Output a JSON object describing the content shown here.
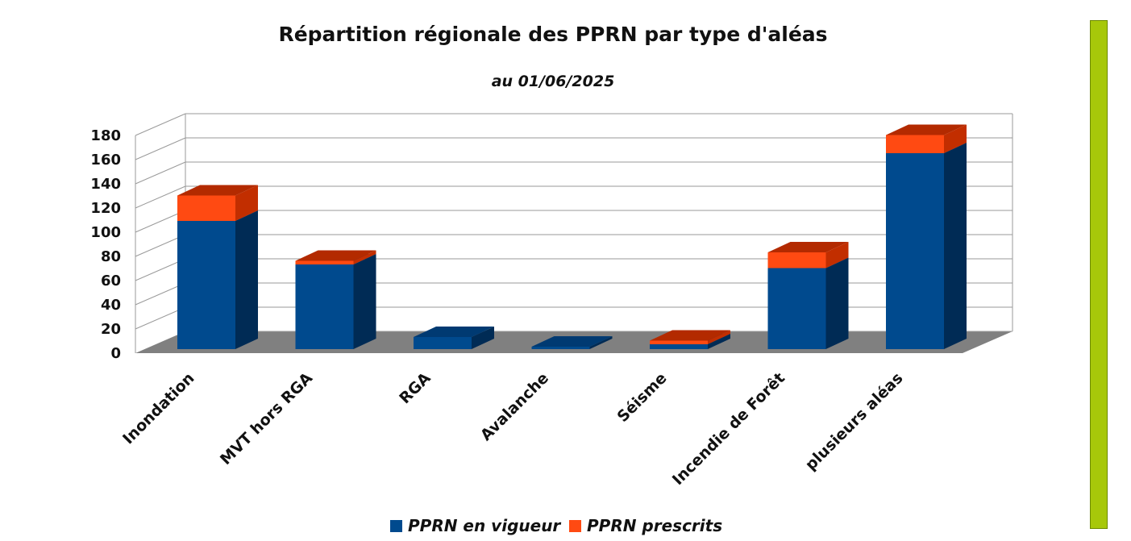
{
  "colors": {
    "vigueur_front": "#004a8e",
    "vigueur_side": "#002b55",
    "vigueur_top": "#003a72",
    "prescrits_front": "#ff4a12",
    "prescrits_side": "#c22e00",
    "prescrits_top": "#b32a00",
    "floor": "#808080",
    "side_bar": "#a7c80a"
  },
  "chart_data": {
    "type": "bar",
    "stacked": true,
    "three_d": true,
    "title": "Répartition régionale des PPRN par type d'aléas",
    "subtitle": "au 01/06/2025",
    "categories": [
      "Inondation",
      "MVT hors RGA",
      "RGA",
      "Avalanche",
      "Séisme",
      "Incendie de Forêt",
      "plusieurs aléas"
    ],
    "series": [
      {
        "name": "PPRN en vigueur",
        "values": [
          106,
          70,
          10,
          2,
          4,
          67,
          162
        ]
      },
      {
        "name": "PPRN prescrits",
        "values": [
          21,
          3,
          0,
          0,
          3,
          13,
          15
        ]
      }
    ],
    "ylim": [
      0,
      180
    ],
    "yticks": [
      "0",
      "20",
      "40",
      "60",
      "80",
      "100",
      "120",
      "140",
      "160",
      "180"
    ],
    "grid": true,
    "legend_position": "bottom"
  }
}
